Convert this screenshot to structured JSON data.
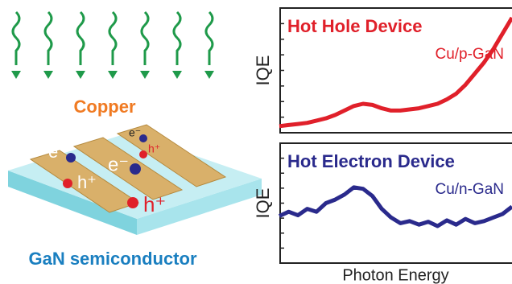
{
  "illustration": {
    "top_label": "Copper",
    "bottom_label": "GaN semiconductor",
    "carriers": [
      "e⁻",
      "h⁺",
      "e⁻",
      "h⁺",
      "e⁻",
      "h⁺"
    ]
  },
  "chart_data": [
    {
      "type": "line",
      "title": "Hot Hole Device",
      "annotation": "Cu/p-GaN",
      "y_label": "IQE",
      "color": "#e0202a",
      "x": [
        0,
        0.04,
        0.08,
        0.12,
        0.16,
        0.2,
        0.24,
        0.28,
        0.32,
        0.36,
        0.4,
        0.44,
        0.48,
        0.52,
        0.56,
        0.6,
        0.64,
        0.68,
        0.72,
        0.76,
        0.8,
        0.84,
        0.88,
        0.92,
        0.96,
        1
      ],
      "values": [
        0.03,
        0.04,
        0.05,
        0.06,
        0.08,
        0.1,
        0.13,
        0.17,
        0.21,
        0.23,
        0.22,
        0.19,
        0.17,
        0.17,
        0.18,
        0.19,
        0.21,
        0.23,
        0.27,
        0.32,
        0.4,
        0.5,
        0.6,
        0.72,
        0.86,
        1.0
      ],
      "xlim": [
        0,
        1
      ],
      "ylim": [
        0,
        1
      ]
    },
    {
      "type": "line",
      "title": "Hot Electron Device",
      "annotation": "Cu/n-GaN",
      "y_label": "IQE",
      "x_label": "Photon Energy",
      "color": "#2a2a8c",
      "x": [
        0,
        0.04,
        0.08,
        0.12,
        0.16,
        0.2,
        0.24,
        0.28,
        0.32,
        0.36,
        0.4,
        0.44,
        0.48,
        0.52,
        0.56,
        0.6,
        0.64,
        0.68,
        0.72,
        0.76,
        0.8,
        0.84,
        0.88,
        0.92,
        0.96,
        1
      ],
      "values": [
        0.32,
        0.38,
        0.33,
        0.42,
        0.38,
        0.5,
        0.55,
        0.62,
        0.72,
        0.7,
        0.6,
        0.42,
        0.3,
        0.22,
        0.25,
        0.2,
        0.24,
        0.18,
        0.26,
        0.2,
        0.28,
        0.22,
        0.25,
        0.3,
        0.35,
        0.45
      ],
      "xlim": [
        0,
        1
      ],
      "ylim": [
        0,
        1
      ]
    }
  ]
}
